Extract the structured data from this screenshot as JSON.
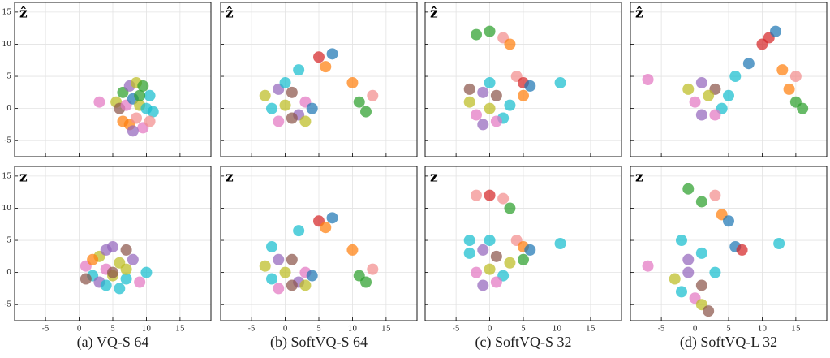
{
  "captions": [
    "(a) VQ-S 64",
    "(b) SoftVQ-S 64",
    "(c) SoftVQ-S 32",
    "(d) SoftVQ-L 32"
  ],
  "chart_data": [
    {
      "type": "scatter",
      "label": "ẑ",
      "xlim": [
        -9.6,
        19.6
      ],
      "ylim": [
        -7.5,
        16.5
      ],
      "xticks": [
        -5,
        0,
        5,
        10,
        15
      ],
      "yticks": [
        -5,
        0,
        5,
        10,
        15
      ],
      "grid": true,
      "x": [
        5.5,
        6.5,
        7.5,
        8.5,
        9.5,
        10.5,
        6,
        7,
        8,
        9,
        10,
        11,
        6.5,
        7.5,
        8.5,
        9.5,
        10.5,
        8,
        9,
        3
      ],
      "y": [
        1,
        2.5,
        3.5,
        4,
        3.5,
        2,
        0,
        0.5,
        1.5,
        0.5,
        0,
        -0.5,
        -2,
        -2.5,
        -1.5,
        -3,
        -2,
        -3.5,
        2,
        1
      ],
      "colors": [
        "#bcbd22",
        "#2ca02c",
        "#9467bd",
        "#bcbd22",
        "#2ca02c",
        "#17becf",
        "#8c564b",
        "#e377c2",
        "#1f77b4",
        "#bcbd22",
        "#17becf",
        "#17becf",
        "#ff7f0e",
        "#ff7f0e",
        "#f28e8e",
        "#e377c2",
        "#f28e8e",
        "#9467bd",
        "#2ca02c",
        "#e377c2"
      ]
    },
    {
      "type": "scatter",
      "label": "ẑ",
      "xlim": [
        -9.6,
        19.6
      ],
      "ylim": [
        -7.5,
        16.5
      ],
      "xticks": [
        -5,
        0,
        5,
        10,
        15
      ],
      "yticks": [
        -5,
        0,
        5,
        10,
        15
      ],
      "grid": true,
      "x": [
        -3,
        -1,
        1,
        3,
        -2,
        0,
        2,
        4,
        -1,
        1,
        3,
        0,
        2,
        5,
        7,
        6,
        11,
        12,
        13,
        10
      ],
      "y": [
        2,
        3,
        2.5,
        1,
        0,
        0.5,
        -1,
        0,
        -2,
        -1.5,
        -2,
        4,
        6,
        8,
        8.5,
        6.5,
        1,
        -0.5,
        2,
        4
      ],
      "colors": [
        "#bcbd22",
        "#9467bd",
        "#8c564b",
        "#e377c2",
        "#17becf",
        "#bcbd22",
        "#9467bd",
        "#1f77b4",
        "#e377c2",
        "#8c564b",
        "#bcbd22",
        "#17becf",
        "#17becf",
        "#d62728",
        "#1f77b4",
        "#ff7f0e",
        "#2ca02c",
        "#2ca02c",
        "#f28e8e",
        "#ff7f0e"
      ]
    },
    {
      "type": "scatter",
      "label": "ẑ",
      "xlim": [
        -9.6,
        19.6
      ],
      "ylim": [
        -7.5,
        16.5
      ],
      "xticks": [
        -5,
        0,
        5,
        10,
        15
      ],
      "yticks": [
        -5,
        0,
        5,
        10,
        15
      ],
      "grid": true,
      "x": [
        -3,
        -1,
        1,
        3,
        -2,
        0,
        2,
        -1,
        1,
        0,
        -2,
        0,
        2,
        3,
        4,
        5,
        6,
        5,
        -3,
        10.5
      ],
      "y": [
        1,
        2.5,
        2,
        0.5,
        -1,
        0,
        -1.5,
        -2.5,
        -2,
        4,
        11.5,
        12,
        11,
        10,
        5,
        4,
        3.5,
        2,
        3,
        4
      ],
      "colors": [
        "#bcbd22",
        "#9467bd",
        "#8c564b",
        "#17becf",
        "#e377c2",
        "#bcbd22",
        "#17becf",
        "#9467bd",
        "#e377c2",
        "#17becf",
        "#2ca02c",
        "#2ca02c",
        "#f28e8e",
        "#ff7f0e",
        "#f28e8e",
        "#d62728",
        "#1f77b4",
        "#ff7f0e",
        "#8c564b",
        "#17becf"
      ]
    },
    {
      "type": "scatter",
      "label": "ẑ",
      "xlim": [
        -9.6,
        19.6
      ],
      "ylim": [
        -7.5,
        16.5
      ],
      "xticks": [
        -5,
        0,
        5,
        10,
        15
      ],
      "yticks": [
        -5,
        0,
        5,
        10,
        15
      ],
      "grid": true,
      "x": [
        -1,
        1,
        3,
        5,
        0,
        2,
        4,
        1,
        3,
        6,
        8,
        10,
        11,
        12,
        14,
        15,
        16,
        15,
        13,
        -7
      ],
      "y": [
        3,
        4,
        3,
        2,
        1,
        2,
        0,
        -1,
        -1,
        5,
        7,
        10,
        11,
        12,
        3,
        1,
        0,
        5,
        6,
        4.5
      ],
      "colors": [
        "#bcbd22",
        "#9467bd",
        "#8c564b",
        "#17becf",
        "#e377c2",
        "#bcbd22",
        "#17becf",
        "#9467bd",
        "#e377c2",
        "#17becf",
        "#1f77b4",
        "#d62728",
        "#d62728",
        "#1f77b4",
        "#ff7f0e",
        "#2ca02c",
        "#2ca02c",
        "#f28e8e",
        "#ff7f0e",
        "#e377c2"
      ]
    },
    {
      "type": "scatter",
      "label": "z",
      "xlim": [
        -9.6,
        19.6
      ],
      "ylim": [
        -7.5,
        16.5
      ],
      "xticks": [
        -5,
        0,
        5,
        10,
        15
      ],
      "yticks": [
        -5,
        0,
        5,
        10,
        15
      ],
      "grid": true,
      "x": [
        1,
        3,
        5,
        7,
        2,
        4,
        6,
        8,
        10,
        1,
        3,
        5,
        7,
        9,
        2,
        4,
        6,
        4,
        7,
        5
      ],
      "y": [
        1,
        2.5,
        4,
        3.5,
        -0.5,
        0.5,
        1.5,
        2,
        0,
        -1,
        -1.5,
        -0.5,
        -1,
        -1.5,
        2,
        3.5,
        -2.5,
        -2,
        0.5,
        0
      ],
      "colors": [
        "#e377c2",
        "#bcbd22",
        "#9467bd",
        "#8c564b",
        "#17becf",
        "#e377c2",
        "#bcbd22",
        "#9467bd",
        "#17becf",
        "#8c564b",
        "#9467bd",
        "#bcbd22",
        "#17becf",
        "#e377c2",
        "#ff7f0e",
        "#9467bd",
        "#17becf",
        "#17becf",
        "#bcbd22",
        "#8c564b"
      ]
    },
    {
      "type": "scatter",
      "label": "z",
      "xlim": [
        -9.6,
        19.6
      ],
      "ylim": [
        -7.5,
        16.5
      ],
      "xticks": [
        -5,
        0,
        5,
        10,
        15
      ],
      "yticks": [
        -5,
        0,
        5,
        10,
        15
      ],
      "grid": true,
      "x": [
        -3,
        -1,
        1,
        3,
        -2,
        0,
        2,
        4,
        -1,
        1,
        3,
        -2,
        2,
        5,
        7,
        6,
        11,
        12,
        13,
        10
      ],
      "y": [
        1,
        2,
        2,
        0,
        -1,
        0,
        -1.5,
        -0.5,
        -2.5,
        -2,
        -2,
        4,
        6.5,
        8,
        8.5,
        7,
        -0.5,
        -1.5,
        0.5,
        3.5
      ],
      "colors": [
        "#bcbd22",
        "#9467bd",
        "#8c564b",
        "#e377c2",
        "#17becf",
        "#bcbd22",
        "#9467bd",
        "#1f77b4",
        "#e377c2",
        "#8c564b",
        "#bcbd22",
        "#17becf",
        "#17becf",
        "#d62728",
        "#1f77b4",
        "#ff7f0e",
        "#2ca02c",
        "#2ca02c",
        "#f28e8e",
        "#ff7f0e"
      ]
    },
    {
      "type": "scatter",
      "label": "z",
      "xlim": [
        -9.6,
        19.6
      ],
      "ylim": [
        -7.5,
        16.5
      ],
      "xticks": [
        -5,
        0,
        5,
        10,
        15
      ],
      "yticks": [
        -5,
        0,
        5,
        10,
        15
      ],
      "grid": true,
      "x": [
        -3,
        -1,
        1,
        3,
        -2,
        0,
        2,
        -1,
        1,
        0,
        -2,
        0,
        2,
        3,
        4,
        5,
        6,
        5,
        -3,
        10.5
      ],
      "y": [
        3,
        3.5,
        2.5,
        1.5,
        0,
        0.5,
        -0.5,
        -2,
        -1.5,
        5,
        12,
        12,
        11.5,
        10,
        5,
        4,
        3.5,
        2,
        5,
        4.5
      ],
      "colors": [
        "#17becf",
        "#9467bd",
        "#8c564b",
        "#bcbd22",
        "#e377c2",
        "#bcbd22",
        "#17becf",
        "#9467bd",
        "#e377c2",
        "#17becf",
        "#f28e8e",
        "#d62728",
        "#f28e8e",
        "#2ca02c",
        "#f28e8e",
        "#ff7f0e",
        "#1f77b4",
        "#2ca02c",
        "#17becf",
        "#17becf"
      ]
    },
    {
      "type": "scatter",
      "label": "z",
      "xlim": [
        -9.6,
        19.6
      ],
      "ylim": [
        -7.5,
        16.5
      ],
      "xticks": [
        -5,
        0,
        5,
        10,
        15
      ],
      "yticks": [
        -5,
        0,
        5,
        10,
        15
      ],
      "grid": true,
      "x": [
        -3,
        -1,
        1,
        0,
        -2,
        1,
        3,
        -1,
        1,
        2,
        -1,
        1,
        3,
        4,
        5,
        6,
        7,
        -2,
        12.5,
        -7
      ],
      "y": [
        -1,
        0,
        -2,
        -4,
        -3,
        -5,
        0,
        2,
        3,
        -6,
        13,
        11,
        12,
        9,
        8,
        4,
        3.5,
        5,
        4.5,
        1
      ],
      "colors": [
        "#bcbd22",
        "#9467bd",
        "#8c564b",
        "#e377c2",
        "#17becf",
        "#bcbd22",
        "#17becf",
        "#9467bd",
        "#17becf",
        "#8c564b",
        "#2ca02c",
        "#2ca02c",
        "#f28e8e",
        "#ff7f0e",
        "#1f77b4",
        "#1f77b4",
        "#d62728",
        "#17becf",
        "#17becf",
        "#e377c2"
      ]
    }
  ]
}
